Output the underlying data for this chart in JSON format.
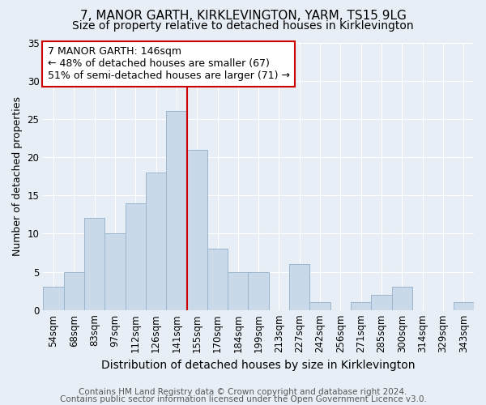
{
  "title": "7, MANOR GARTH, KIRKLEVINGTON, YARM, TS15 9LG",
  "subtitle": "Size of property relative to detached houses in Kirklevington",
  "xlabel": "Distribution of detached houses by size in Kirklevington",
  "ylabel": "Number of detached properties",
  "footer_line1": "Contains HM Land Registry data © Crown copyright and database right 2024.",
  "footer_line2": "Contains public sector information licensed under the Open Government Licence v3.0.",
  "bar_labels": [
    "54sqm",
    "68sqm",
    "83sqm",
    "97sqm",
    "112sqm",
    "126sqm",
    "141sqm",
    "155sqm",
    "170sqm",
    "184sqm",
    "199sqm",
    "213sqm",
    "227sqm",
    "242sqm",
    "256sqm",
    "271sqm",
    "285sqm",
    "300sqm",
    "314sqm",
    "329sqm",
    "343sqm"
  ],
  "bar_values": [
    3,
    5,
    12,
    10,
    14,
    18,
    26,
    21,
    8,
    5,
    5,
    0,
    6,
    1,
    0,
    1,
    2,
    3,
    0,
    0,
    1
  ],
  "bar_color": "#c9d9ea",
  "bar_edge_color": "#9ab5cc",
  "vline_x": 6.5,
  "vline_color": "#cc0000",
  "annotation_text": "7 MANOR GARTH: 146sqm\n← 48% of detached houses are smaller (67)\n51% of semi-detached houses are larger (71) →",
  "annotation_box_facecolor": "#ffffff",
  "annotation_box_edgecolor": "#cc0000",
  "ylim": [
    0,
    35
  ],
  "yticks": [
    0,
    5,
    10,
    15,
    20,
    25,
    30,
    35
  ],
  "background_color": "#e8eef5",
  "axes_background": "#e8eef5",
  "title_fontsize": 11,
  "subtitle_fontsize": 10,
  "xlabel_fontsize": 10,
  "ylabel_fontsize": 9,
  "tick_fontsize": 8.5,
  "annotation_fontsize": 9,
  "footer_fontsize": 7.5
}
